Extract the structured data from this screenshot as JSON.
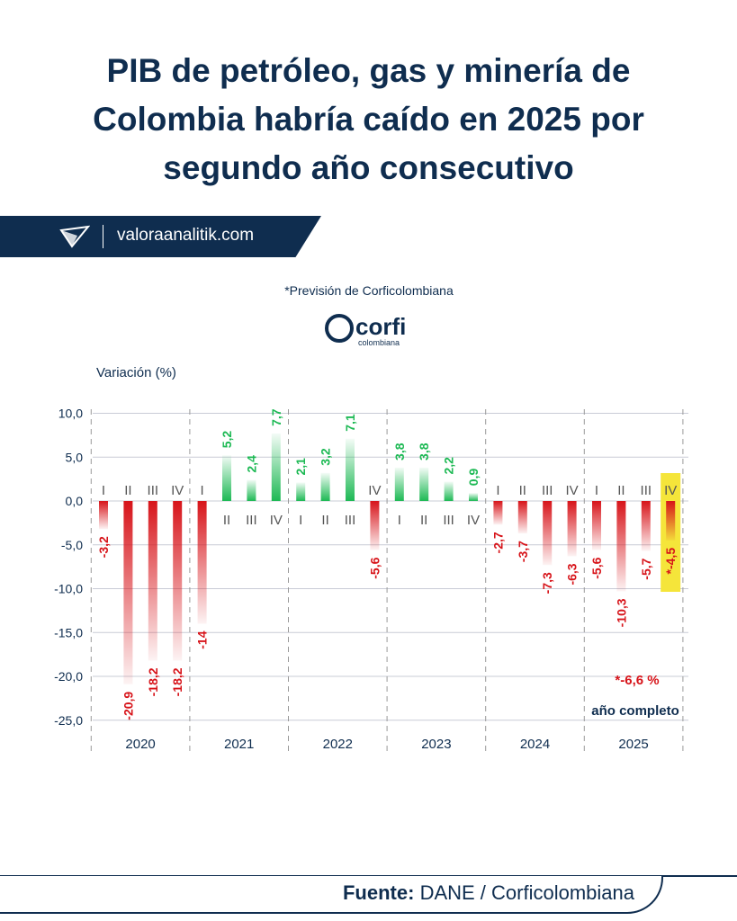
{
  "title_lines": [
    "PIB de petróleo, gas y minería de",
    "Colombia habría caído en 2025 por",
    "segundo año consecutivo"
  ],
  "banner": {
    "site": "valoraanalitik.com"
  },
  "footer": {
    "label": "Fuente:",
    "source": "DANE / Corficolombiana"
  },
  "colors": {
    "navy": "#0f2d4f",
    "positive": "#1db954",
    "negative": "#d7141a",
    "highlight": "#f5e53a"
  },
  "chart_data": {
    "type": "bar",
    "note": "*Previsión de Corficolombiana",
    "logo_text": [
      "corfi",
      "colombiana"
    ],
    "ylabel": "Variación (%)",
    "ylim": [
      -25,
      10
    ],
    "yticks": [
      "10,0",
      "5,0",
      "0,0",
      "-5,0",
      "-10,0",
      "-15,0",
      "-20,0",
      "-25,0"
    ],
    "ytick_values": [
      10,
      5,
      0,
      -5,
      -10,
      -15,
      -20,
      -25
    ],
    "grid": true,
    "years": [
      "2020",
      "2021",
      "2022",
      "2023",
      "2024",
      "2025"
    ],
    "quarters": [
      "I",
      "II",
      "III",
      "IV"
    ],
    "values": [
      [
        -3.2,
        -20.9,
        -18.2,
        -18.2
      ],
      [
        -14,
        5.2,
        2.4,
        7.7
      ],
      [
        2.1,
        3.2,
        7.1,
        -5.6
      ],
      [
        3.8,
        3.8,
        2.2,
        0.9
      ],
      [
        -2.7,
        -3.7,
        -7.3,
        -6.3
      ],
      [
        -5.6,
        -10.3,
        -5.7,
        -4.5
      ]
    ],
    "labels": [
      [
        "-3,2",
        "-20,9",
        "-18,2",
        "-18,2"
      ],
      [
        "-14",
        "5,2",
        "2,4",
        "7,7"
      ],
      [
        "2,1",
        "3,2",
        "7,1",
        "-5,6"
      ],
      [
        "3,8",
        "3,8",
        "2,2",
        "0,9"
      ],
      [
        "-2,7",
        "-3,7",
        "-7,3",
        "-6,3"
      ],
      [
        "-5,6",
        "-10,3",
        "-5,7",
        "*-4,5"
      ]
    ],
    "forecast": {
      "year": "2025",
      "quarter": "IV"
    },
    "annual_forecast": {
      "value": -6.6,
      "label": "*-6,6 %",
      "caption": "año completo"
    }
  }
}
